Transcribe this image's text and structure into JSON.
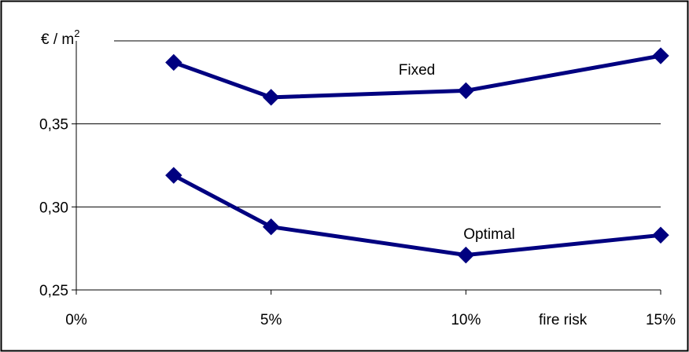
{
  "chart_data": {
    "type": "line",
    "title": "",
    "ylabel": "€ / m",
    "ylabel_superscript": "2",
    "xlabel": "fire risk",
    "x_ticks": [
      "0%",
      "5%",
      "10%",
      "15%"
    ],
    "x_tick_values": [
      0,
      5,
      10,
      15
    ],
    "y_ticks": [
      "0,25",
      "0,30",
      "0,35"
    ],
    "y_tick_values": [
      0.25,
      0.3,
      0.35
    ],
    "xlim": [
      0,
      15
    ],
    "ylim": [
      0.25,
      0.4
    ],
    "grid": "horizontal",
    "series": [
      {
        "name": "Fixed",
        "color": "#000080",
        "points": [
          {
            "x": 2.5,
            "y": 0.387
          },
          {
            "x": 5,
            "y": 0.366
          },
          {
            "x": 10,
            "y": 0.37
          },
          {
            "x": 15,
            "y": 0.391
          }
        ]
      },
      {
        "name": "Optimal",
        "color": "#000080",
        "points": [
          {
            "x": 2.5,
            "y": 0.319
          },
          {
            "x": 5,
            "y": 0.288
          },
          {
            "x": 10,
            "y": 0.271
          },
          {
            "x": 15,
            "y": 0.283
          }
        ]
      }
    ]
  }
}
